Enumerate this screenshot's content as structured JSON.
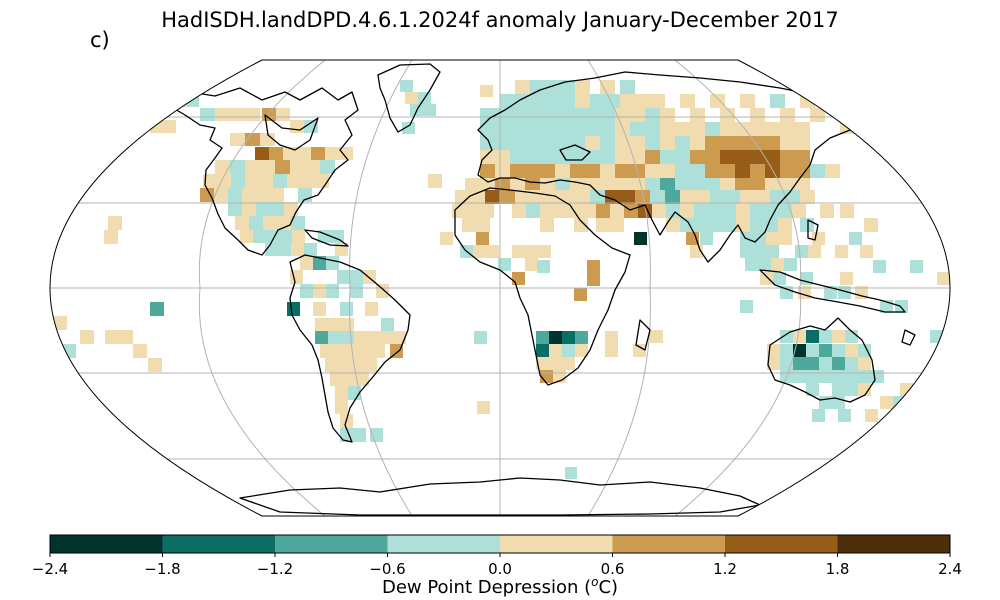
{
  "title": "HadISDH.landDPD.4.6.1.2024f anomaly January-December 2017",
  "panel_label": "c)",
  "colorbar": {
    "label": "Dew Point Depression (",
    "label_sup": "o",
    "label_unit": "C)",
    "ticks": [
      "−2.4",
      "−1.8",
      "−1.2",
      "−0.6",
      "0.0",
      "0.6",
      "1.2",
      "1.8",
      "2.4"
    ],
    "bins": [
      {
        "range": [
          -2.4,
          -1.8
        ],
        "color": "#01342c"
      },
      {
        "range": [
          -1.8,
          -1.2
        ],
        "color": "#0b6e64"
      },
      {
        "range": [
          -1.2,
          -0.6
        ],
        "color": "#4ea99c"
      },
      {
        "range": [
          -0.6,
          0.0
        ],
        "color": "#ade0d8"
      },
      {
        "range": [
          0.0,
          0.6
        ],
        "color": "#f0dcae"
      },
      {
        "range": [
          0.6,
          1.2
        ],
        "color": "#cd9b4f"
      },
      {
        "range": [
          1.2,
          1.8
        ],
        "color": "#975c17"
      },
      {
        "range": [
          1.8,
          2.4
        ],
        "color": "#4e2f0b"
      }
    ]
  },
  "map": {
    "projection": "Robinson",
    "graticule_lat": [
      -60,
      -30,
      0,
      30,
      60
    ],
    "graticule_lon": [
      -120,
      -60,
      0,
      60,
      120
    ],
    "coastline_color": "#000000",
    "graticule_color": "#b3b3b3"
  }
}
